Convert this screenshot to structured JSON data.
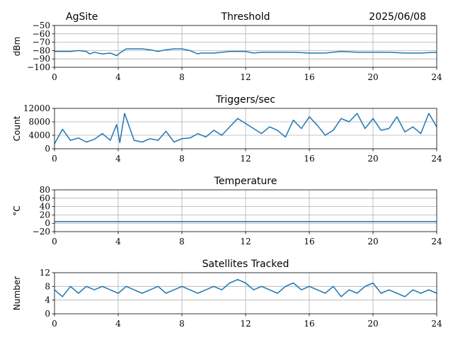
{
  "header": {
    "site": "AgSite",
    "date": "2025/06/08"
  },
  "style": {
    "line_color": "#1f77b4",
    "grid_color": "#b0b0b0"
  },
  "chart_data": [
    {
      "id": "threshold",
      "type": "line",
      "title": "Threshold",
      "ylabel": "dBm",
      "xlim": [
        0,
        24
      ],
      "ylim": [
        -100,
        -50
      ],
      "xticks": [
        0,
        4,
        8,
        12,
        16,
        20,
        24
      ],
      "yticks": [
        -100,
        -90,
        -80,
        -70,
        -60,
        -50
      ],
      "ytick_labels": [
        "−100",
        "−90",
        "−80",
        "−70",
        "−60",
        "−50"
      ],
      "grid": true,
      "x": [
        0,
        0.5,
        1,
        1.5,
        2,
        2.2,
        2.5,
        3,
        3.5,
        3.9,
        4.1,
        4.5,
        5,
        5.5,
        6,
        6.5,
        7,
        7.5,
        8,
        8.5,
        9,
        9.2,
        9.5,
        10,
        10.5,
        11,
        11.5,
        12,
        12.5,
        13,
        14,
        15,
        16,
        17,
        18,
        19,
        20,
        21,
        22,
        23,
        24
      ],
      "y": [
        -81,
        -81,
        -81,
        -80,
        -81,
        -84,
        -82,
        -84,
        -83,
        -86,
        -83,
        -78,
        -78,
        -78,
        -79,
        -81,
        -79,
        -78,
        -78,
        -80,
        -84,
        -83,
        -83,
        -83,
        -82,
        -81,
        -81,
        -81,
        -83,
        -82,
        -82,
        -82,
        -83,
        -83,
        -81,
        -82,
        -82,
        -82,
        -83,
        -83,
        -82
      ]
    },
    {
      "id": "triggers",
      "type": "line",
      "title": "Triggers/sec",
      "ylabel": "Count",
      "xlim": [
        0,
        24
      ],
      "ylim": [
        0,
        12000
      ],
      "xticks": [
        0,
        4,
        8,
        12,
        16,
        20,
        24
      ],
      "yticks": [
        0,
        4000,
        8000,
        12000
      ],
      "ytick_labels": [
        "0",
        "4000",
        "8000",
        "12000"
      ],
      "grid": true,
      "x": [
        0,
        0.5,
        1,
        1.5,
        2,
        2.5,
        3,
        3.5,
        3.9,
        4.1,
        4.4,
        5,
        5.5,
        6,
        6.5,
        7,
        7.5,
        8,
        8.5,
        9,
        9.5,
        10,
        10.5,
        11,
        11.5,
        12,
        12.5,
        13,
        13.5,
        14,
        14.5,
        15,
        15.5,
        16,
        16.5,
        17,
        17.5,
        18,
        18.5,
        19,
        19.5,
        20,
        20.5,
        21,
        21.5,
        22,
        22.5,
        23,
        23.5,
        24
      ],
      "y": [
        1500,
        5800,
        2500,
        3200,
        2000,
        2800,
        4500,
        2500,
        7200,
        1800,
        10500,
        2500,
        2000,
        3000,
        2500,
        5200,
        2000,
        3000,
        3200,
        4500,
        3500,
        5500,
        4000,
        6500,
        9000,
        7500,
        6000,
        4500,
        6500,
        5500,
        3500,
        8500,
        6000,
        9500,
        7000,
        4000,
        5500,
        9000,
        8000,
        10500,
        6000,
        9000,
        5500,
        6000,
        9500,
        5000,
        6500,
        4500,
        10500,
        6500
      ]
    },
    {
      "id": "temperature",
      "type": "line",
      "title": "Temperature",
      "ylabel": "°C",
      "xlim": [
        0,
        24
      ],
      "ylim": [
        -20,
        80
      ],
      "xticks": [
        0,
        4,
        8,
        12,
        16,
        20,
        24
      ],
      "yticks": [
        -20,
        0,
        20,
        40,
        60,
        80
      ],
      "ytick_labels": [
        "−20",
        "0",
        "20",
        "40",
        "60",
        "80"
      ],
      "grid": true,
      "x": [
        0,
        24
      ],
      "y": [
        4,
        4
      ]
    },
    {
      "id": "satellites",
      "type": "line",
      "title": "Satellites Tracked",
      "ylabel": "Number",
      "xlim": [
        0,
        24
      ],
      "ylim": [
        0,
        12
      ],
      "xticks": [
        0,
        4,
        8,
        12,
        16,
        20,
        24
      ],
      "yticks": [
        0,
        4,
        8,
        12
      ],
      "ytick_labels": [
        "0",
        "4",
        "8",
        "12"
      ],
      "grid": true,
      "x": [
        0,
        0.5,
        1,
        1.5,
        2,
        2.5,
        3,
        3.5,
        4,
        4.5,
        5,
        5.5,
        6,
        6.5,
        7,
        7.5,
        8,
        8.5,
        9,
        9.5,
        10,
        10.5,
        11,
        11.5,
        12,
        12.5,
        13,
        13.5,
        14,
        14.5,
        15,
        15.5,
        16,
        16.5,
        17,
        17.5,
        18,
        18.5,
        19,
        19.5,
        20,
        20.5,
        21,
        21.5,
        22,
        22.5,
        23,
        23.5,
        24
      ],
      "y": [
        7,
        5,
        8,
        6,
        8,
        7,
        8,
        7,
        6,
        8,
        7,
        6,
        7,
        8,
        6,
        7,
        8,
        7,
        6,
        7,
        8,
        7,
        9,
        10,
        9,
        7,
        8,
        7,
        6,
        8,
        9,
        7,
        8,
        7,
        6,
        8,
        5,
        7,
        6,
        8,
        9,
        6,
        7,
        6,
        5,
        7,
        6,
        7,
        6
      ]
    }
  ]
}
